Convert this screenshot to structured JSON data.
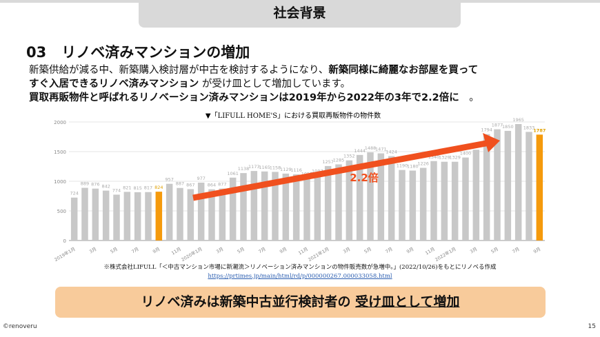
{
  "header": {
    "title": "社会背景"
  },
  "section": {
    "number": "03",
    "title": "リノベ済みマンションの増加"
  },
  "body": {
    "line1_normal": "新築供給が減る中、新築購入検討層が中古を検討するようになり、",
    "line1_bold": "新築同様に綺麗なお部屋を買って",
    "line2_bold": "すぐ入居できるリノベ済みマンション",
    "line2_normal": " が受け皿として増加しています。",
    "line3_bold": "買取再販物件と呼ばれるリノベーション済みマンションは2019年から2022年の3年で2.2倍に",
    "line3_end": "　。"
  },
  "chart_data": {
    "type": "bar",
    "title": "▼「LIFULL HOME'S」における買取再販物件の物件数",
    "ylim": [
      0,
      2000
    ],
    "yticks": [
      0,
      500,
      1000,
      1500,
      2000
    ],
    "categories": [
      "2019年1月",
      "2月",
      "3月",
      "4月",
      "5月",
      "6月",
      "7月",
      "8月",
      "9月",
      "10月",
      "11月",
      "12月",
      "2020年1月",
      "2月",
      "3月",
      "4月",
      "5月",
      "6月",
      "7月",
      "8月",
      "9月",
      "10月",
      "11月",
      "12月",
      "2021年1月",
      "2月",
      "3月",
      "4月",
      "5月",
      "6月",
      "7月",
      "8月",
      "9月",
      "10月",
      "11月",
      "12月",
      "2022年1月",
      "2月",
      "3月",
      "4月",
      "5月",
      "6月",
      "7月",
      "8月",
      "9月"
    ],
    "values": [
      724,
      889,
      876,
      842,
      774,
      821,
      815,
      817,
      824,
      957,
      887,
      867,
      977,
      864,
      877,
      1061,
      1138,
      1173,
      1165,
      1158,
      1129,
      1116,
      1055,
      1097,
      1257,
      1285,
      1352,
      1444,
      1488,
      1471,
      1424,
      1190,
      1180,
      1226,
      1340,
      1329,
      1329,
      1400,
      1532,
      1794,
      1877,
      1850,
      1965,
      1833,
      1787
    ],
    "highlight_indices": [
      8,
      44
    ],
    "colors": {
      "bar": "#c8c8c8",
      "highlight": "#f59a0c",
      "arrow": "#f0501e"
    },
    "annotation": "2.2倍",
    "grid": true
  },
  "source": {
    "note": "※株式会社LIFULL「＜中古マンション市場に新潮流＞リノベーション済みマンションの物件販売数が急増中。」(2022/10/26)をもとにリノベる作成",
    "link": "https://prtimes.jp/main/html/rd/p/000000267.000033058.html"
  },
  "banner": {
    "normal": "リノベ済みは新築中古並行検討者の ",
    "underlined": "受け皿として増加"
  },
  "footer": {
    "copyright": "©renoveru",
    "page": "15"
  }
}
